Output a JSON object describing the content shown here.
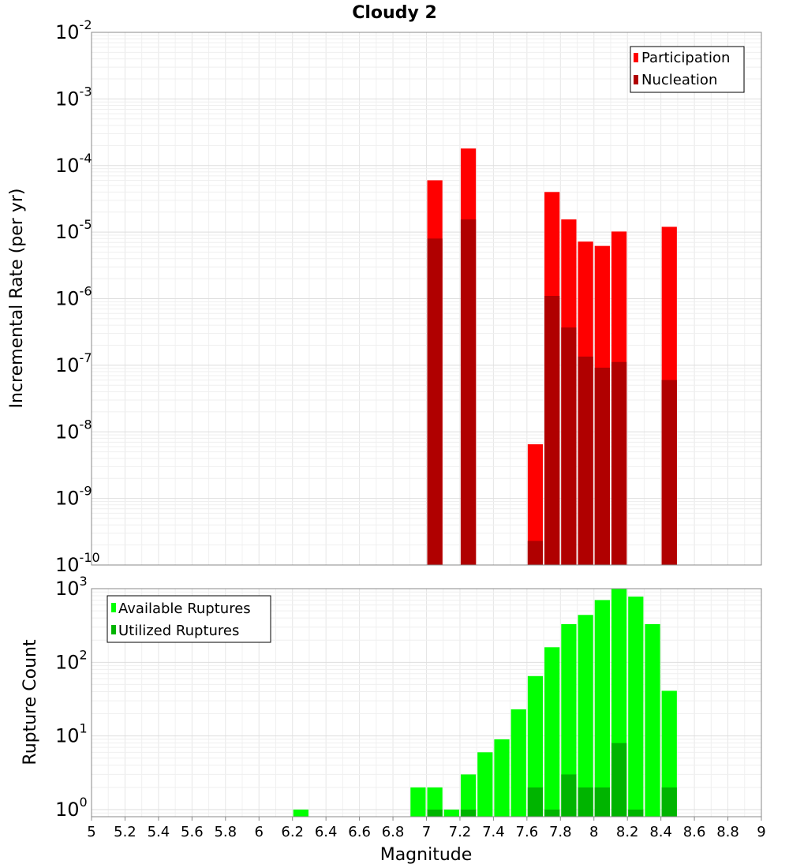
{
  "chart_data": [
    {
      "type": "bar",
      "title": "Cloudy 2",
      "xlabel": "",
      "ylabel": "Incremental Rate (per yr)",
      "xlim": [
        5,
        9
      ],
      "ylim": [
        1e-10,
        0.01
      ],
      "yscale": "log",
      "grid": true,
      "legend_position": "top-right",
      "bin_width": 0.1,
      "y_ticks": [
        {
          "base": "10",
          "exp": "-10"
        },
        {
          "base": "10",
          "exp": "-9"
        },
        {
          "base": "10",
          "exp": "-8"
        },
        {
          "base": "10",
          "exp": "-7"
        },
        {
          "base": "10",
          "exp": "-6"
        },
        {
          "base": "10",
          "exp": "-5"
        },
        {
          "base": "10",
          "exp": "-4"
        },
        {
          "base": "10",
          "exp": "-3"
        },
        {
          "base": "10",
          "exp": "-2"
        }
      ],
      "series": [
        {
          "name": "Participation",
          "color": "#ff0000",
          "points": [
            {
              "x": 7.05,
              "y": 6e-05
            },
            {
              "x": 7.25,
              "y": 0.00018
            },
            {
              "x": 7.65,
              "y": 6.5e-09
            },
            {
              "x": 7.75,
              "y": 4e-05
            },
            {
              "x": 7.85,
              "y": 1.55e-05
            },
            {
              "x": 7.95,
              "y": 7.2e-06
            },
            {
              "x": 8.05,
              "y": 6.2e-06
            },
            {
              "x": 8.15,
              "y": 1.02e-05
            },
            {
              "x": 8.45,
              "y": 1.2e-05
            }
          ]
        },
        {
          "name": "Nucleation",
          "color": "#b00000",
          "points": [
            {
              "x": 7.05,
              "y": 8e-06
            },
            {
              "x": 7.25,
              "y": 1.55e-05
            },
            {
              "x": 7.65,
              "y": 2.3e-10
            },
            {
              "x": 7.75,
              "y": 1.1e-06
            },
            {
              "x": 7.85,
              "y": 3.7e-07
            },
            {
              "x": 7.95,
              "y": 1.35e-07
            },
            {
              "x": 8.05,
              "y": 9.2e-08
            },
            {
              "x": 8.15,
              "y": 1.12e-07
            },
            {
              "x": 8.45,
              "y": 6e-08
            }
          ]
        }
      ]
    },
    {
      "type": "bar",
      "title": "",
      "xlabel": "Magnitude",
      "ylabel": "Rupture Count",
      "xlim": [
        5,
        9
      ],
      "ylim": [
        0.8,
        1000
      ],
      "yscale": "log",
      "grid": true,
      "legend_position": "top-left",
      "bin_width": 0.1,
      "x_ticks": [
        "5",
        "5.2",
        "5.4",
        "5.6",
        "5.8",
        "6",
        "6.2",
        "6.4",
        "6.6",
        "6.8",
        "7",
        "7.2",
        "7.4",
        "7.6",
        "7.8",
        "8",
        "8.2",
        "8.4",
        "8.6",
        "8.8",
        "9"
      ],
      "y_ticks": [
        {
          "base": "10",
          "exp": "0"
        },
        {
          "base": "10",
          "exp": "1"
        },
        {
          "base": "10",
          "exp": "2"
        },
        {
          "base": "10",
          "exp": "3"
        }
      ],
      "series": [
        {
          "name": "Available Ruptures",
          "color": "#00ff00",
          "points": [
            {
              "x": 6.25,
              "y": 1
            },
            {
              "x": 6.95,
              "y": 2
            },
            {
              "x": 7.05,
              "y": 2
            },
            {
              "x": 7.15,
              "y": 1
            },
            {
              "x": 7.25,
              "y": 3
            },
            {
              "x": 7.35,
              "y": 6
            },
            {
              "x": 7.45,
              "y": 9
            },
            {
              "x": 7.55,
              "y": 23
            },
            {
              "x": 7.65,
              "y": 65
            },
            {
              "x": 7.75,
              "y": 160
            },
            {
              "x": 7.85,
              "y": 330
            },
            {
              "x": 7.95,
              "y": 440
            },
            {
              "x": 8.05,
              "y": 700
            },
            {
              "x": 8.15,
              "y": 1000
            },
            {
              "x": 8.25,
              "y": 780
            },
            {
              "x": 8.35,
              "y": 330
            },
            {
              "x": 8.45,
              "y": 41
            }
          ]
        },
        {
          "name": "Utilized Ruptures",
          "color": "#00b400",
          "points": [
            {
              "x": 7.05,
              "y": 1
            },
            {
              "x": 7.25,
              "y": 1
            },
            {
              "x": 7.65,
              "y": 2
            },
            {
              "x": 7.75,
              "y": 1
            },
            {
              "x": 7.85,
              "y": 3
            },
            {
              "x": 7.95,
              "y": 2
            },
            {
              "x": 8.05,
              "y": 2
            },
            {
              "x": 8.15,
              "y": 8
            },
            {
              "x": 8.25,
              "y": 1
            },
            {
              "x": 8.45,
              "y": 2
            }
          ]
        }
      ]
    }
  ]
}
